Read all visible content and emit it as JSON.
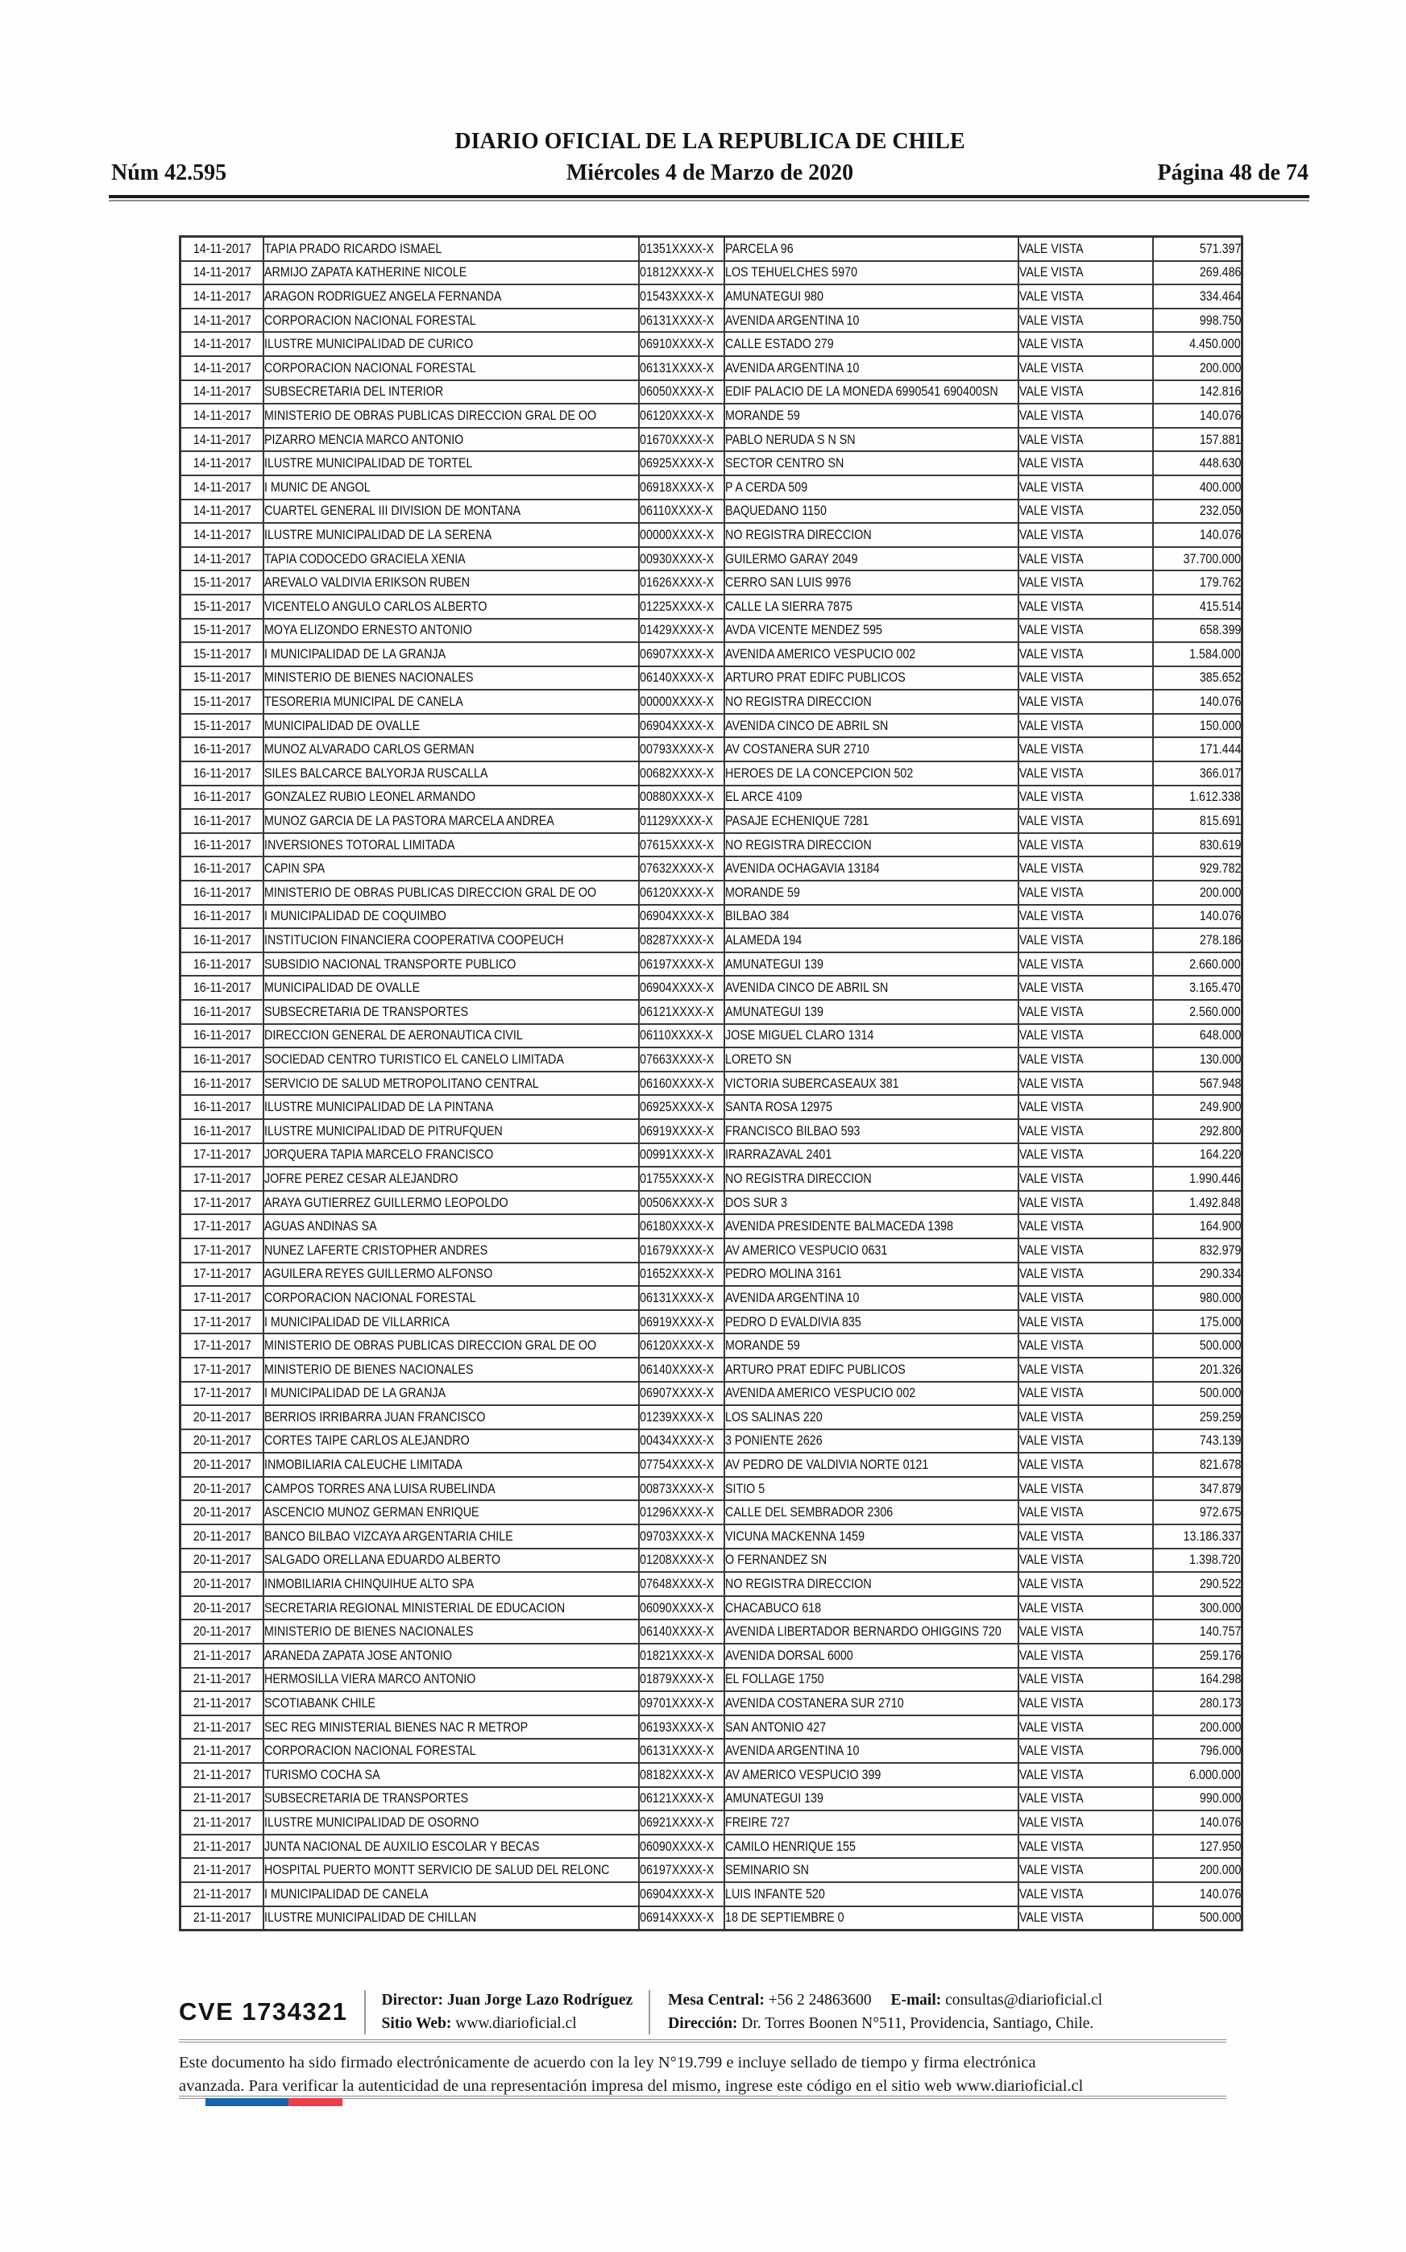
{
  "header": {
    "issue": "Núm 42.595",
    "title": "DIARIO OFICIAL DE LA REPUBLICA DE CHILE",
    "date": "Miércoles 4 de Marzo de 2020",
    "page": "Página 48 de 74"
  },
  "table": {
    "rows": [
      [
        "14-11-2017",
        "TAPIA PRADO RICARDO ISMAEL",
        "01351XXXX-X",
        "PARCELA 96",
        "VALE VISTA",
        "571.397"
      ],
      [
        "14-11-2017",
        "ARMIJO ZAPATA KATHERINE NICOLE",
        "01812XXXX-X",
        "LOS TEHUELCHES 5970",
        "VALE VISTA",
        "269.486"
      ],
      [
        "14-11-2017",
        "ARAGON RODRIGUEZ ANGELA FERNANDA",
        "01543XXXX-X",
        "AMUNATEGUI 980",
        "VALE VISTA",
        "334.464"
      ],
      [
        "14-11-2017",
        "CORPORACION NACIONAL FORESTAL",
        "06131XXXX-X",
        "AVENIDA ARGENTINA 10",
        "VALE VISTA",
        "998.750"
      ],
      [
        "14-11-2017",
        "ILUSTRE MUNICIPALIDAD DE CURICO",
        "06910XXXX-X",
        "CALLE ESTADO 279",
        "VALE VISTA",
        "4.450.000"
      ],
      [
        "14-11-2017",
        "CORPORACION NACIONAL FORESTAL",
        "06131XXXX-X",
        "AVENIDA ARGENTINA 10",
        "VALE VISTA",
        "200.000"
      ],
      [
        "14-11-2017",
        "SUBSECRETARIA DEL INTERIOR",
        "06050XXXX-X",
        "EDIF PALACIO DE LA MONEDA 6990541 690400SN",
        "VALE VISTA",
        "142.816"
      ],
      [
        "14-11-2017",
        "MINISTERIO DE OBRAS PUBLICAS DIRECCION GRAL DE OO",
        "06120XXXX-X",
        "MORANDE 59",
        "VALE VISTA",
        "140.076"
      ],
      [
        "14-11-2017",
        "PIZARRO MENCIA MARCO ANTONIO",
        "01670XXXX-X",
        "PABLO NERUDA S N SN",
        "VALE VISTA",
        "157.881"
      ],
      [
        "14-11-2017",
        "ILUSTRE MUNICIPALIDAD DE TORTEL",
        "06925XXXX-X",
        "SECTOR CENTRO SN",
        "VALE VISTA",
        "448.630"
      ],
      [
        "14-11-2017",
        "I MUNIC DE ANGOL",
        "06918XXXX-X",
        "P A CERDA 509",
        "VALE VISTA",
        "400.000"
      ],
      [
        "14-11-2017",
        "CUARTEL GENERAL III DIVISION DE MONTANA",
        "06110XXXX-X",
        "BAQUEDANO 1150",
        "VALE VISTA",
        "232.050"
      ],
      [
        "14-11-2017",
        "ILUSTRE MUNICIPALIDAD DE LA SERENA",
        "00000XXXX-X",
        "NO REGISTRA DIRECCION",
        "VALE VISTA",
        "140.076"
      ],
      [
        "14-11-2017",
        "TAPIA CODOCEDO GRACIELA XENIA",
        "00930XXXX-X",
        "GUILERMO GARAY 2049",
        "VALE VISTA",
        "37.700.000"
      ],
      [
        "15-11-2017",
        "AREVALO VALDIVIA ERIKSON RUBEN",
        "01626XXXX-X",
        "CERRO SAN LUIS 9976",
        "VALE VISTA",
        "179.762"
      ],
      [
        "15-11-2017",
        "VICENTELO ANGULO CARLOS ALBERTO",
        "01225XXXX-X",
        "CALLE LA SIERRA 7875",
        "VALE VISTA",
        "415.514"
      ],
      [
        "15-11-2017",
        "MOYA ELIZONDO ERNESTO ANTONIO",
        "01429XXXX-X",
        "AVDA VICENTE MENDEZ 595",
        "VALE VISTA",
        "658.399"
      ],
      [
        "15-11-2017",
        "I MUNICIPALIDAD DE LA GRANJA",
        "06907XXXX-X",
        "AVENIDA AMERICO VESPUCIO 002",
        "VALE VISTA",
        "1.584.000"
      ],
      [
        "15-11-2017",
        "MINISTERIO DE BIENES NACIONALES",
        "06140XXXX-X",
        "ARTURO PRAT EDIFC PUBLICOS",
        "VALE VISTA",
        "385.652"
      ],
      [
        "15-11-2017",
        "TESORERIA MUNICIPAL DE CANELA",
        "00000XXXX-X",
        "NO REGISTRA DIRECCION",
        "VALE VISTA",
        "140.076"
      ],
      [
        "15-11-2017",
        "MUNICIPALIDAD DE OVALLE",
        "06904XXXX-X",
        "AVENIDA CINCO DE ABRIL SN",
        "VALE VISTA",
        "150.000"
      ],
      [
        "16-11-2017",
        "MUNOZ ALVARADO CARLOS GERMAN",
        "00793XXXX-X",
        "AV COSTANERA SUR 2710",
        "VALE VISTA",
        "171.444"
      ],
      [
        "16-11-2017",
        "SILES BALCARCE BALYORJA RUSCALLA",
        "00682XXXX-X",
        "HEROES DE LA CONCEPCION 502",
        "VALE VISTA",
        "366.017"
      ],
      [
        "16-11-2017",
        "GONZALEZ RUBIO LEONEL ARMANDO",
        "00880XXXX-X",
        "EL ARCE 4109",
        "VALE VISTA",
        "1.612.338"
      ],
      [
        "16-11-2017",
        "MUNOZ GARCIA DE LA PASTORA MARCELA ANDREA",
        "01129XXXX-X",
        "PASAJE ECHENIQUE 7281",
        "VALE VISTA",
        "815.691"
      ],
      [
        "16-11-2017",
        "INVERSIONES TOTORAL LIMITADA",
        "07615XXXX-X",
        "NO REGISTRA DIRECCION",
        "VALE VISTA",
        "830.619"
      ],
      [
        "16-11-2017",
        "CAPIN SPA",
        "07632XXXX-X",
        "AVENIDA OCHAGAVIA 13184",
        "VALE VISTA",
        "929.782"
      ],
      [
        "16-11-2017",
        "MINISTERIO DE OBRAS PUBLICAS DIRECCION GRAL DE OO",
        "06120XXXX-X",
        "MORANDE 59",
        "VALE VISTA",
        "200.000"
      ],
      [
        "16-11-2017",
        "I MUNICIPALIDAD DE COQUIMBO",
        "06904XXXX-X",
        "BILBAO 384",
        "VALE VISTA",
        "140.076"
      ],
      [
        "16-11-2017",
        "INSTITUCION FINANCIERA COOPERATIVA COOPEUCH",
        "08287XXXX-X",
        "ALAMEDA 194",
        "VALE VISTA",
        "278.186"
      ],
      [
        "16-11-2017",
        "SUBSIDIO NACIONAL TRANSPORTE PUBLICO",
        "06197XXXX-X",
        "AMUNATEGUI 139",
        "VALE VISTA",
        "2.660.000"
      ],
      [
        "16-11-2017",
        "MUNICIPALIDAD DE OVALLE",
        "06904XXXX-X",
        "AVENIDA CINCO DE ABRIL SN",
        "VALE VISTA",
        "3.165.470"
      ],
      [
        "16-11-2017",
        "SUBSECRETARIA DE TRANSPORTES",
        "06121XXXX-X",
        "AMUNATEGUI 139",
        "VALE VISTA",
        "2.560.000"
      ],
      [
        "16-11-2017",
        "DIRECCION GENERAL DE AERONAUTICA CIVIL",
        "06110XXXX-X",
        "JOSE MIGUEL CLARO 1314",
        "VALE VISTA",
        "648.000"
      ],
      [
        "16-11-2017",
        "SOCIEDAD CENTRO TURISTICO EL CANELO LIMITADA",
        "07663XXXX-X",
        "LORETO SN",
        "VALE VISTA",
        "130.000"
      ],
      [
        "16-11-2017",
        "SERVICIO DE SALUD METROPOLITANO CENTRAL",
        "06160XXXX-X",
        "VICTORIA SUBERCASEAUX 381",
        "VALE VISTA",
        "567.948"
      ],
      [
        "16-11-2017",
        "ILUSTRE MUNICIPALIDAD DE LA PINTANA",
        "06925XXXX-X",
        "SANTA ROSA 12975",
        "VALE VISTA",
        "249.900"
      ],
      [
        "16-11-2017",
        "ILUSTRE MUNICIPALIDAD DE PITRUFQUEN",
        "06919XXXX-X",
        "FRANCISCO BILBAO 593",
        "VALE VISTA",
        "292.800"
      ],
      [
        "17-11-2017",
        "JORQUERA TAPIA MARCELO FRANCISCO",
        "00991XXXX-X",
        "IRARRAZAVAL 2401",
        "VALE VISTA",
        "164.220"
      ],
      [
        "17-11-2017",
        "JOFRE PEREZ CESAR ALEJANDRO",
        "01755XXXX-X",
        "NO REGISTRA DIRECCION",
        "VALE VISTA",
        "1.990.446"
      ],
      [
        "17-11-2017",
        "ARAYA GUTIERREZ GUILLERMO LEOPOLDO",
        "00506XXXX-X",
        "DOS SUR 3",
        "VALE VISTA",
        "1.492.848"
      ],
      [
        "17-11-2017",
        "AGUAS ANDINAS SA",
        "06180XXXX-X",
        "AVENIDA PRESIDENTE BALMACEDA 1398",
        "VALE VISTA",
        "164.900"
      ],
      [
        "17-11-2017",
        "NUNEZ LAFERTE CRISTOPHER ANDRES",
        "01679XXXX-X",
        "AV AMERICO VESPUCIO 0631",
        "VALE VISTA",
        "832.979"
      ],
      [
        "17-11-2017",
        "AGUILERA REYES GUILLERMO ALFONSO",
        "01652XXXX-X",
        "PEDRO MOLINA 3161",
        "VALE VISTA",
        "290.334"
      ],
      [
        "17-11-2017",
        "CORPORACION NACIONAL FORESTAL",
        "06131XXXX-X",
        "AVENIDA ARGENTINA 10",
        "VALE VISTA",
        "980.000"
      ],
      [
        "17-11-2017",
        "I MUNICIPALIDAD DE VILLARRICA",
        "06919XXXX-X",
        "PEDRO D EVALDIVIA 835",
        "VALE VISTA",
        "175.000"
      ],
      [
        "17-11-2017",
        "MINISTERIO DE OBRAS PUBLICAS DIRECCION GRAL DE OO",
        "06120XXXX-X",
        "MORANDE 59",
        "VALE VISTA",
        "500.000"
      ],
      [
        "17-11-2017",
        "MINISTERIO DE BIENES NACIONALES",
        "06140XXXX-X",
        "ARTURO PRAT EDIFC PUBLICOS",
        "VALE VISTA",
        "201.326"
      ],
      [
        "17-11-2017",
        "I MUNICIPALIDAD DE LA GRANJA",
        "06907XXXX-X",
        "AVENIDA AMERICO VESPUCIO 002",
        "VALE VISTA",
        "500.000"
      ],
      [
        "20-11-2017",
        "BERRIOS IRRIBARRA JUAN FRANCISCO",
        "01239XXXX-X",
        "LOS SALINAS 220",
        "VALE VISTA",
        "259.259"
      ],
      [
        "20-11-2017",
        "CORTES TAIPE CARLOS ALEJANDRO",
        "00434XXXX-X",
        "3 PONIENTE 2626",
        "VALE VISTA",
        "743.139"
      ],
      [
        "20-11-2017",
        "INMOBILIARIA CALEUCHE LIMITADA",
        "07754XXXX-X",
        "AV PEDRO DE VALDIVIA NORTE 0121",
        "VALE VISTA",
        "821.678"
      ],
      [
        "20-11-2017",
        "CAMPOS TORRES ANA LUISA RUBELINDA",
        "00873XXXX-X",
        "SITIO 5",
        "VALE VISTA",
        "347.879"
      ],
      [
        "20-11-2017",
        "ASCENCIO MUNOZ GERMAN ENRIQUE",
        "01296XXXX-X",
        "CALLE DEL SEMBRADOR 2306",
        "VALE VISTA",
        "972.675"
      ],
      [
        "20-11-2017",
        "BANCO BILBAO VIZCAYA ARGENTARIA CHILE",
        "09703XXXX-X",
        "VICUNA MACKENNA 1459",
        "VALE VISTA",
        "13.186.337"
      ],
      [
        "20-11-2017",
        "SALGADO ORELLANA EDUARDO ALBERTO",
        "01208XXXX-X",
        "O FERNANDEZ SN",
        "VALE VISTA",
        "1.398.720"
      ],
      [
        "20-11-2017",
        "INMOBILIARIA CHINQUIHUE ALTO SPA",
        "07648XXXX-X",
        "NO REGISTRA DIRECCION",
        "VALE VISTA",
        "290.522"
      ],
      [
        "20-11-2017",
        "SECRETARIA REGIONAL MINISTERIAL DE EDUCACION",
        "06090XXXX-X",
        "CHACABUCO 618",
        "VALE VISTA",
        "300.000"
      ],
      [
        "20-11-2017",
        "MINISTERIO DE BIENES NACIONALES",
        "06140XXXX-X",
        "AVENIDA LIBERTADOR BERNARDO OHIGGINS 720",
        "VALE VISTA",
        "140.757"
      ],
      [
        "21-11-2017",
        "ARANEDA ZAPATA JOSE ANTONIO",
        "01821XXXX-X",
        "AVENIDA DORSAL 6000",
        "VALE VISTA",
        "259.176"
      ],
      [
        "21-11-2017",
        "HERMOSILLA VIERA MARCO ANTONIO",
        "01879XXXX-X",
        "EL FOLLAGE 1750",
        "VALE VISTA",
        "164.298"
      ],
      [
        "21-11-2017",
        "SCOTIABANK CHILE",
        "09701XXXX-X",
        "AVENIDA COSTANERA SUR 2710",
        "VALE VISTA",
        "280.173"
      ],
      [
        "21-11-2017",
        "SEC REG MINISTERIAL BIENES NAC R METROP",
        "06193XXXX-X",
        "SAN ANTONIO 427",
        "VALE VISTA",
        "200.000"
      ],
      [
        "21-11-2017",
        "CORPORACION NACIONAL FORESTAL",
        "06131XXXX-X",
        "AVENIDA ARGENTINA 10",
        "VALE VISTA",
        "796.000"
      ],
      [
        "21-11-2017",
        "TURISMO COCHA SA",
        "08182XXXX-X",
        "AV AMERICO VESPUCIO 399",
        "VALE VISTA",
        "6.000.000"
      ],
      [
        "21-11-2017",
        "SUBSECRETARIA DE TRANSPORTES",
        "06121XXXX-X",
        "AMUNATEGUI 139",
        "VALE VISTA",
        "990.000"
      ],
      [
        "21-11-2017",
        "ILUSTRE MUNICIPALIDAD DE OSORNO",
        "06921XXXX-X",
        "FREIRE 727",
        "VALE VISTA",
        "140.076"
      ],
      [
        "21-11-2017",
        "JUNTA NACIONAL DE AUXILIO ESCOLAR Y BECAS",
        "06090XXXX-X",
        "CAMILO HENRIQUE 155",
        "VALE VISTA",
        "127.950"
      ],
      [
        "21-11-2017",
        "HOSPITAL PUERTO MONTT SERVICIO DE SALUD DEL RELONC",
        "06197XXXX-X",
        "SEMINARIO SN",
        "VALE VISTA",
        "200.000"
      ],
      [
        "21-11-2017",
        "I MUNICIPALIDAD DE CANELA",
        "06904XXXX-X",
        "LUIS INFANTE 520",
        "VALE VISTA",
        "140.076"
      ],
      [
        "21-11-2017",
        "ILUSTRE MUNICIPALIDAD DE CHILLAN",
        "06914XXXX-X",
        "18 DE SEPTIEMBRE 0",
        "VALE VISTA",
        "500.000"
      ]
    ]
  },
  "footer": {
    "cve": "CVE 1734321",
    "director_label": "Director:",
    "director": "Juan Jorge Lazo Rodríguez",
    "sitio_label": "Sitio Web:",
    "sitio": "www.diarioficial.cl",
    "mesa_label": "Mesa Central:",
    "mesa": "+56 2 24863600",
    "email_label": "E-mail:",
    "email": "consultas@diarioficial.cl",
    "direccion_label": "Dirección:",
    "direccion": "Dr. Torres Boonen N°511, Providencia, Santiago, Chile.",
    "legal_line1": "Este documento ha sido firmado electrónicamente de acuerdo con la ley N°19.799 e incluye sellado de tiempo y firma electrónica",
    "legal_line2": "avanzada. Para verificar la autenticidad de una representación impresa del mismo, ingrese este código en el sitio web www.diarioficial.cl",
    "flag_colors": {
      "blue": "#1565af",
      "red": "#ee3f48"
    }
  }
}
